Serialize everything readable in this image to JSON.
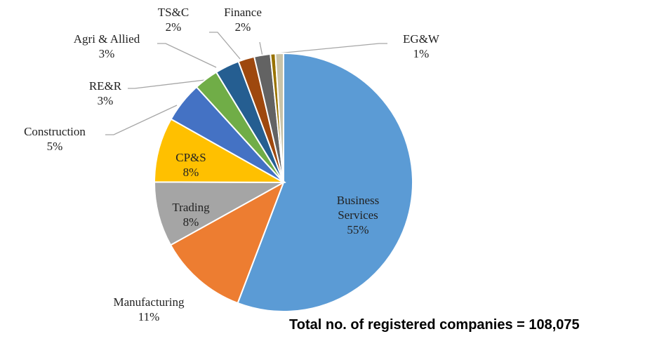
{
  "chart_data": {
    "type": "pie",
    "categories": [
      "Business Services",
      "Manufacturing",
      "Trading",
      "CP&S",
      "Construction",
      "RE&R",
      "Agri & Allied",
      "TS&C",
      "Finance",
      null,
      "EG&W"
    ],
    "values": [
      55,
      11,
      8,
      8,
      5,
      3,
      3,
      2,
      2,
      0.6,
      1
    ],
    "value_labels": [
      "55%",
      "11%",
      "8%",
      "8%",
      "5%",
      "3%",
      "3%",
      "2%",
      "2%",
      null,
      "1%"
    ],
    "colors": [
      "#5b9bd5",
      "#ed7d31",
      "#a5a5a5",
      "#ffc000",
      "#4472c4",
      "#70ad47",
      "#255e91",
      "#9e480e",
      "#636363",
      "#997300",
      "#c9c3a8"
    ],
    "note": "Total no. of registered companies  = 108,075"
  }
}
